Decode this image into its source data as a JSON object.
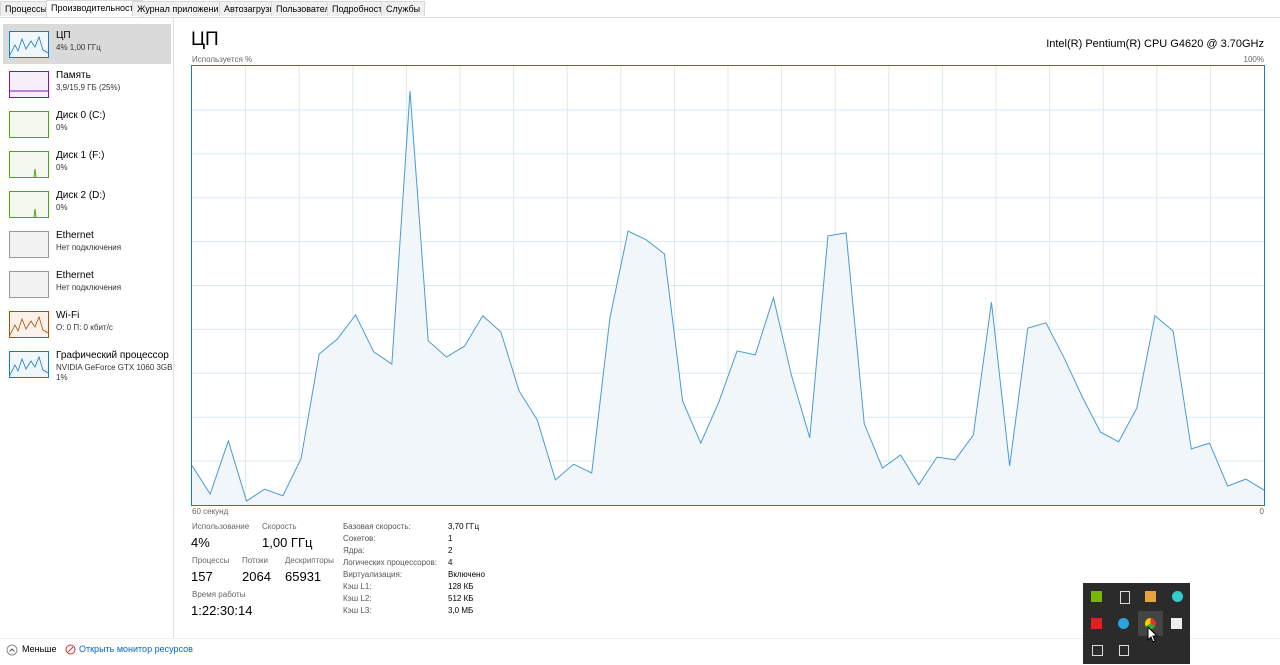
{
  "tabs": [
    "Процессы",
    "Производительность",
    "Журнал приложений",
    "Автозагрузка",
    "Пользователи",
    "Подробности",
    "Службы"
  ],
  "selected_tab": 1,
  "sidebar": [
    {
      "title": "ЦП",
      "lines": [
        "4% 1,00 ГГц"
      ]
    },
    {
      "title": "Память",
      "lines": [
        "3,9/15,9 ГБ (25%)"
      ]
    },
    {
      "title": "Диск 0 (C:)",
      "lines": [
        "0%"
      ]
    },
    {
      "title": "Диск 1 (F:)",
      "lines": [
        "0%"
      ]
    },
    {
      "title": "Диск 2 (D:)",
      "lines": [
        "0%"
      ]
    },
    {
      "title": "Ethernet",
      "lines": [
        "Нет подключения"
      ]
    },
    {
      "title": "Ethernet",
      "lines": [
        "Нет подключения"
      ]
    },
    {
      "title": "Wi-Fi",
      "lines": [
        "О: 0 П: 0 кбит/с"
      ]
    },
    {
      "title": "Графический процессор",
      "lines": [
        "NVIDIA GeForce GTX 1060 3GB",
        "1%"
      ]
    }
  ],
  "header": {
    "title": "ЦП",
    "cpu_name": "Intel(R) Pentium(R) CPU G4620 @ 3.70GHz"
  },
  "graph": {
    "y_label": "Используется %",
    "max_label": "100%",
    "x_label": "60 секунд",
    "min_label": "0",
    "ylim": [
      0,
      100
    ],
    "values": [
      9,
      2.5,
      14.6,
      0.9,
      3.6,
      2.1,
      10.5,
      34.4,
      37.8,
      43.3,
      34.9,
      32.1,
      94.3,
      37.4,
      33.7,
      36.2,
      43.1,
      39.4,
      26,
      19.4,
      5.7,
      9.3,
      7.3,
      42.6,
      62.4,
      60.4,
      57.2,
      23.7,
      14.1,
      23.5,
      35.1,
      34.2,
      47.2,
      29.4,
      15.3,
      61.3,
      62,
      18.5,
      8.4,
      11.4,
      4.6,
      10.9,
      10.3,
      15.9,
      46.2,
      8.9,
      40.3,
      41.5,
      33.5,
      24.6,
      16.6,
      14.4,
      22.1,
      43.1,
      39.6,
      12.8,
      14.1,
      4.3,
      5.9,
      3.4
    ]
  },
  "stats": {
    "usage": {
      "label": "Использование",
      "value": "4%"
    },
    "speed": {
      "label": "Скорость",
      "value": "1,00 ГГц"
    },
    "processes": {
      "label": "Процессы",
      "value": "157"
    },
    "threads": {
      "label": "Потоки",
      "value": "2064"
    },
    "handles": {
      "label": "Дескрипторы",
      "value": "65931"
    },
    "uptime": {
      "label": "Время работы",
      "value": "1:22:30:14"
    }
  },
  "details": [
    [
      "Базовая скорость:",
      "3,70 ГГц"
    ],
    [
      "Сокетов:",
      "1"
    ],
    [
      "Ядра:",
      "2"
    ],
    [
      "Логических процессоров:",
      "4"
    ],
    [
      "Виртуализация:",
      "Включено"
    ],
    [
      "Кэш L1:",
      "128 КБ"
    ],
    [
      "Кэш L2:",
      "512 КБ"
    ],
    [
      "Кэш L3:",
      "3,0 МБ"
    ]
  ],
  "footer": {
    "less": "Меньше",
    "monitor_link": "Открыть монитор ресурсов"
  }
}
